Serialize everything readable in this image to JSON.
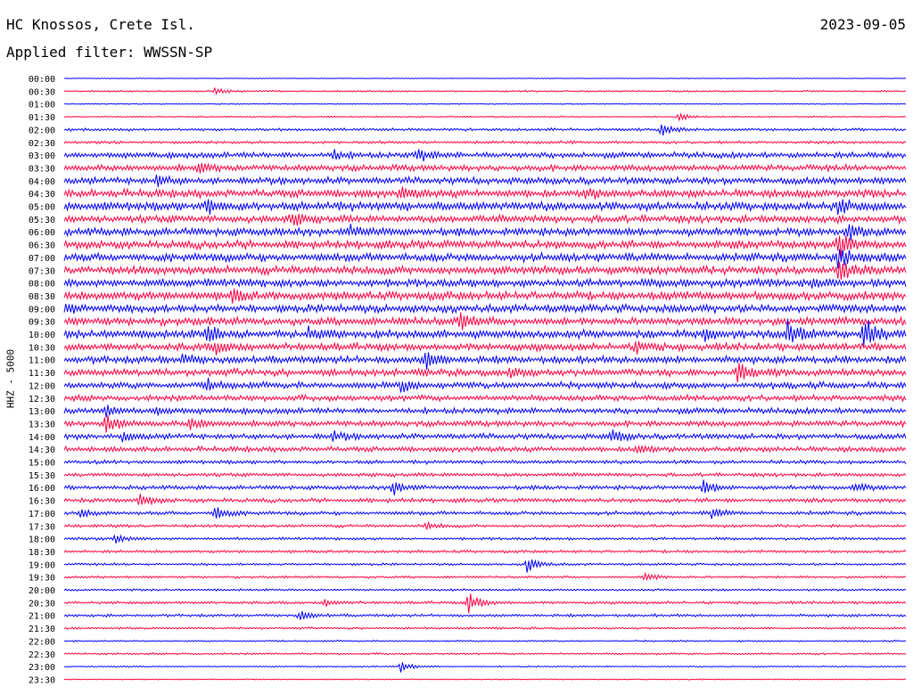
{
  "header": {
    "station": "HC Knossos, Crete Isl.",
    "date": "2023-09-05",
    "filter": "Applied filter: WWSSN-SP"
  },
  "chart_data": {
    "type": "line",
    "title": "HC Knossos, Crete Isl.",
    "ylabel": "HHZ - 5000",
    "xlabel": "",
    "line_colors": [
      "#0000ff",
      "#ff0040"
    ],
    "row_times": [
      "00:00",
      "00:30",
      "01:00",
      "01:30",
      "02:00",
      "02:30",
      "03:00",
      "03:30",
      "04:00",
      "04:30",
      "05:00",
      "05:30",
      "06:00",
      "06:30",
      "07:00",
      "07:30",
      "08:00",
      "08:30",
      "09:00",
      "09:30",
      "10:00",
      "10:30",
      "11:00",
      "11:30",
      "12:00",
      "12:30",
      "13:00",
      "13:30",
      "14:00",
      "14:30",
      "15:00",
      "15:30",
      "16:00",
      "16:30",
      "17:00",
      "17:30",
      "18:00",
      "18:30",
      "19:00",
      "19:30",
      "20:00",
      "20:30",
      "21:00",
      "21:30",
      "22:00",
      "22:30",
      "23:00",
      "23:30"
    ],
    "noise_level": [
      0.3,
      0.7,
      0.4,
      0.6,
      1.2,
      1.2,
      2.6,
      2.6,
      3.0,
      3.5,
      3.8,
      3.2,
      3.4,
      3.6,
      3.5,
      3.7,
      3.6,
      3.6,
      3.5,
      3.4,
      3.6,
      3.2,
      3.1,
      3.0,
      2.8,
      2.6,
      2.6,
      2.4,
      2.4,
      2.3,
      1.6,
      1.6,
      1.8,
      1.8,
      1.6,
      1.3,
      1.2,
      1.2,
      1.0,
      1.0,
      0.9,
      1.2,
      1.2,
      0.9,
      0.7,
      0.8,
      0.6,
      0.5
    ],
    "events": [
      {
        "row": 1,
        "x": 0.18,
        "amp": 4
      },
      {
        "row": 3,
        "x": 0.73,
        "amp": 4
      },
      {
        "row": 4,
        "x": 0.71,
        "amp": 7
      },
      {
        "row": 6,
        "x": 0.32,
        "amp": 5
      },
      {
        "row": 6,
        "x": 0.42,
        "amp": 6
      },
      {
        "row": 7,
        "x": 0.16,
        "amp": 5
      },
      {
        "row": 8,
        "x": 0.11,
        "amp": 5
      },
      {
        "row": 9,
        "x": 0.4,
        "amp": 5
      },
      {
        "row": 9,
        "x": 0.62,
        "amp": 6
      },
      {
        "row": 10,
        "x": 0.17,
        "amp": 7
      },
      {
        "row": 10,
        "x": 0.92,
        "amp": 8
      },
      {
        "row": 11,
        "x": 0.27,
        "amp": 6
      },
      {
        "row": 12,
        "x": 0.34,
        "amp": 6
      },
      {
        "row": 12,
        "x": 0.93,
        "amp": 8
      },
      {
        "row": 13,
        "x": 0.92,
        "amp": 16
      },
      {
        "row": 14,
        "x": 0.92,
        "amp": 12
      },
      {
        "row": 15,
        "x": 0.92,
        "amp": 10
      },
      {
        "row": 16,
        "x": 0.89,
        "amp": 6
      },
      {
        "row": 17,
        "x": 0.2,
        "amp": 6
      },
      {
        "row": 18,
        "x": 0.0,
        "amp": 6
      },
      {
        "row": 19,
        "x": 0.47,
        "amp": 9
      },
      {
        "row": 20,
        "x": 0.17,
        "amp": 8
      },
      {
        "row": 20,
        "x": 0.29,
        "amp": 6
      },
      {
        "row": 20,
        "x": 0.76,
        "amp": 7
      },
      {
        "row": 20,
        "x": 0.86,
        "amp": 16
      },
      {
        "row": 20,
        "x": 0.95,
        "amp": 18
      },
      {
        "row": 21,
        "x": 0.18,
        "amp": 7
      },
      {
        "row": 21,
        "x": 0.68,
        "amp": 6
      },
      {
        "row": 22,
        "x": 0.43,
        "amp": 10
      },
      {
        "row": 22,
        "x": 0.14,
        "amp": 5
      },
      {
        "row": 23,
        "x": 0.8,
        "amp": 13
      },
      {
        "row": 23,
        "x": 0.53,
        "amp": 5
      },
      {
        "row": 24,
        "x": 0.4,
        "amp": 6
      },
      {
        "row": 24,
        "x": 0.17,
        "amp": 5
      },
      {
        "row": 26,
        "x": 0.05,
        "amp": 5
      },
      {
        "row": 26,
        "x": 0.11,
        "amp": 5
      },
      {
        "row": 27,
        "x": 0.05,
        "amp": 10
      },
      {
        "row": 27,
        "x": 0.15,
        "amp": 6
      },
      {
        "row": 28,
        "x": 0.07,
        "amp": 6
      },
      {
        "row": 28,
        "x": 0.65,
        "amp": 7
      },
      {
        "row": 28,
        "x": 0.32,
        "amp": 5
      },
      {
        "row": 29,
        "x": 0.68,
        "amp": 6
      },
      {
        "row": 32,
        "x": 0.39,
        "amp": 8
      },
      {
        "row": 32,
        "x": 0.76,
        "amp": 8
      },
      {
        "row": 32,
        "x": 0.94,
        "amp": 5
      },
      {
        "row": 33,
        "x": 0.09,
        "amp": 7
      },
      {
        "row": 34,
        "x": 0.02,
        "amp": 5
      },
      {
        "row": 34,
        "x": 0.18,
        "amp": 8
      },
      {
        "row": 34,
        "x": 0.77,
        "amp": 6
      },
      {
        "row": 35,
        "x": 0.43,
        "amp": 4
      },
      {
        "row": 36,
        "x": 0.06,
        "amp": 5
      },
      {
        "row": 38,
        "x": 0.55,
        "amp": 8
      },
      {
        "row": 39,
        "x": 0.69,
        "amp": 5
      },
      {
        "row": 41,
        "x": 0.48,
        "amp": 12
      },
      {
        "row": 41,
        "x": 0.31,
        "amp": 4
      },
      {
        "row": 42,
        "x": 0.28,
        "amp": 5
      },
      {
        "row": 46,
        "x": 0.4,
        "amp": 6
      }
    ]
  }
}
